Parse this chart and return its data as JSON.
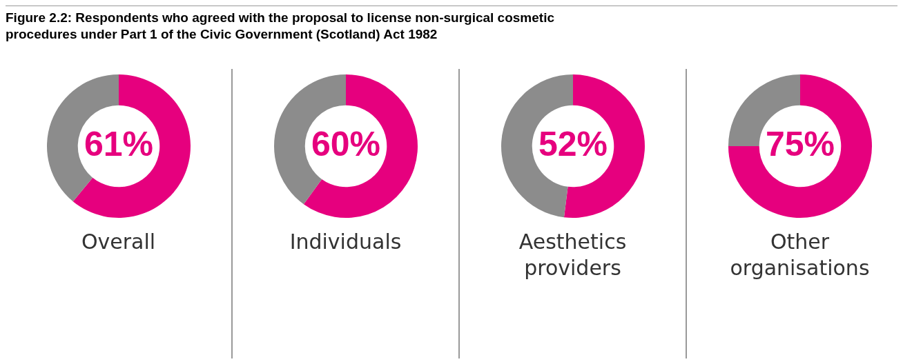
{
  "chart_data": [
    {
      "type": "donut",
      "title": "Figure 2.2: Respondents who agreed with the proposal to license non-surgical cosmetic procedures under Part 1 of the Civic Government (Scotland) Act 1982",
      "xlabel": "Overall",
      "categories": [
        null,
        null
      ],
      "values": [
        61,
        39
      ],
      "colors": [
        "#e6007e",
        "#8c8c8c"
      ],
      "value_labels": [
        "61%",
        null
      ]
    },
    {
      "type": "donut",
      "xlabel": "Individuals",
      "categories": [
        null,
        null
      ],
      "values": [
        60,
        40
      ],
      "colors": [
        "#e6007e",
        "#8c8c8c"
      ],
      "value_labels": [
        "60%",
        null
      ]
    },
    {
      "type": "donut",
      "xlabel": "Aesthetics providers",
      "categories": [
        null,
        null
      ],
      "values": [
        52,
        48
      ],
      "colors": [
        "#e6007e",
        "#8c8c8c"
      ],
      "value_labels": [
        "52%",
        null
      ]
    },
    {
      "type": "donut",
      "xlabel": "Other organisations",
      "categories": [
        null,
        null
      ],
      "values": [
        75,
        25
      ],
      "colors": [
        "#e6007e",
        "#8c8c8c"
      ],
      "value_labels": [
        "75%",
        null
      ]
    }
  ]
}
